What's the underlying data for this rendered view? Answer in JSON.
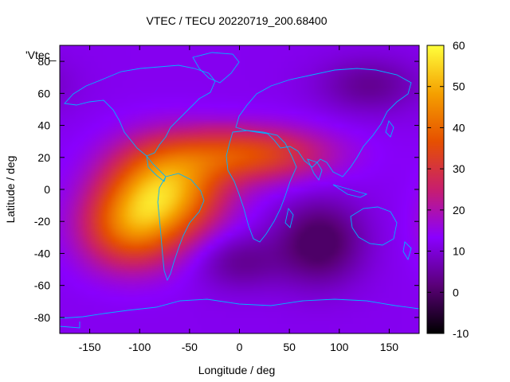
{
  "chart_data": {
    "type": "heatmap",
    "title": "VTEC / TECU 20220719_200.68400",
    "xlabel": "Longitude / deg",
    "ylabel": "Latitude / deg",
    "series_label": "'Vtec_",
    "xlim": [
      -180,
      180
    ],
    "ylim": [
      -90,
      90
    ],
    "x_ticks": [
      -150,
      -100,
      -50,
      0,
      50,
      100,
      150
    ],
    "y_ticks": [
      -80,
      -60,
      -40,
      -20,
      0,
      20,
      40,
      60,
      80
    ],
    "colorbar": {
      "range": [
        -10,
        60
      ],
      "ticks": [
        -10,
        0,
        10,
        20,
        30,
        40,
        50,
        60
      ],
      "palette": [
        "#000000",
        "#5a0078",
        "#8a00ff",
        "#c81e6e",
        "#e65000",
        "#f5a000",
        "#ffff3c"
      ]
    },
    "background_level": 12,
    "features": [
      {
        "name": "equatorial-anomaly-americas",
        "lon": -75,
        "lat": 0,
        "value": 49
      },
      {
        "name": "northern-crest-africa",
        "lon": 10,
        "lat": 22,
        "value": 35
      },
      {
        "name": "southern-crest-pacific",
        "lon": -110,
        "lat": -25,
        "value": 36
      },
      {
        "name": "low-south-indian-ocean",
        "lon": 80,
        "lat": -33,
        "value": -2
      },
      {
        "name": "low-south-atlantic",
        "lon": 0,
        "lat": -45,
        "value": 4
      },
      {
        "name": "low-north-pacific",
        "lon": 130,
        "lat": 65,
        "value": 4
      }
    ]
  },
  "colors": {
    "map_outline": "#00b4ff",
    "axis": "#000000"
  }
}
